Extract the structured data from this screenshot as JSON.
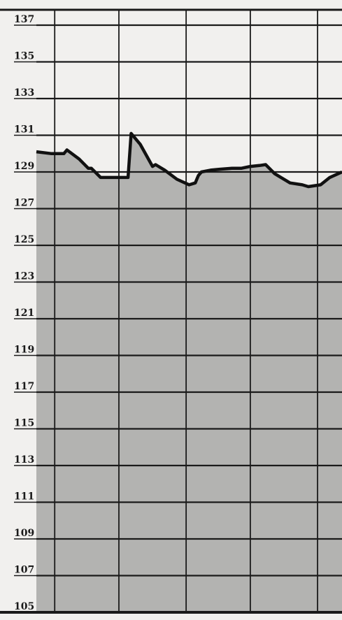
{
  "chart_data": {
    "type": "area",
    "title": "",
    "xlabel": "",
    "ylabel": "",
    "ylim": [
      105,
      137
    ],
    "y_ticks": [
      137,
      135,
      133,
      131,
      129,
      127,
      125,
      123,
      121,
      119,
      117,
      115,
      113,
      111,
      109,
      107,
      105
    ],
    "x_range": [
      0,
      1
    ],
    "vertical_grid_fractions": [
      0.06,
      0.27,
      0.49,
      0.7,
      0.92
    ],
    "grid": true,
    "series": [
      {
        "x": [
          0.0,
          0.05,
          0.09,
          0.1,
          0.14,
          0.17,
          0.18,
          0.21,
          0.27,
          0.3,
          0.31,
          0.34,
          0.38,
          0.39,
          0.42,
          0.46,
          0.5,
          0.52,
          0.53,
          0.54,
          0.57,
          0.6,
          0.64,
          0.67,
          0.7,
          0.73,
          0.75,
          0.78,
          0.83,
          0.87,
          0.89,
          0.93,
          0.96,
          1.0
        ],
        "y": [
          130.1,
          130.0,
          130.0,
          130.2,
          129.7,
          129.2,
          129.2,
          128.7,
          128.7,
          128.7,
          131.1,
          130.5,
          129.3,
          129.4,
          129.1,
          128.6,
          128.3,
          128.4,
          128.8,
          129.0,
          129.1,
          129.15,
          129.2,
          129.2,
          129.3,
          129.35,
          129.4,
          128.9,
          128.4,
          128.3,
          128.2,
          128.3,
          128.7,
          129.0
        ]
      }
    ],
    "colors": {
      "background": "#f1f0ee",
      "fill": "#b3b3b1",
      "grid": "#1a1a1a",
      "line": "#111111"
    }
  }
}
